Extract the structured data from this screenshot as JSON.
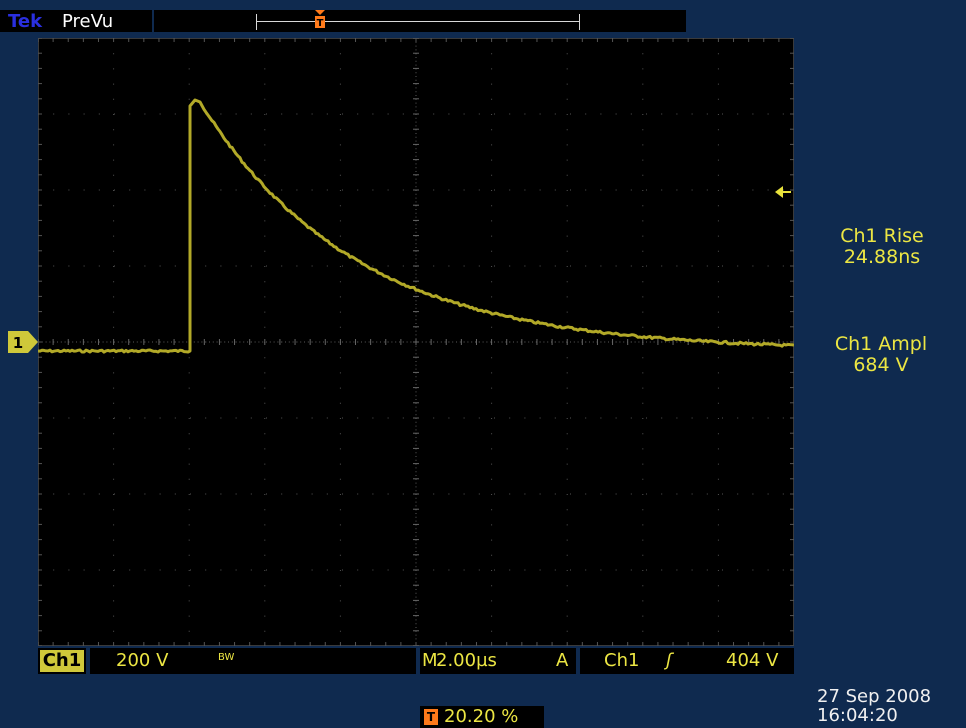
{
  "header": {
    "brand": "Tek",
    "mode": "PreVu"
  },
  "markers": {
    "trigger_label": "T",
    "channel_label": "1"
  },
  "measurements": [
    {
      "name": "Ch1 Rise",
      "value": "24.88ns"
    },
    {
      "name": "Ch1 Ampl",
      "value": "684 V"
    }
  ],
  "status": {
    "channel": "Ch1",
    "volts_per_div": "200 V",
    "bw_limit": "BW",
    "timebase_prefix": "M",
    "timebase": "2.00µs",
    "trigger_mode": "A",
    "trigger_source": "Ch1",
    "trigger_slope": "ʃ",
    "trigger_level": "404 V"
  },
  "trigger_position": {
    "icon": "T",
    "value": "20.20 %"
  },
  "timestamp": {
    "date": "27 Sep  2008",
    "time": "16:04:20"
  },
  "colors": {
    "trace": "#b2a928",
    "trigger_marker": "#ff7a1a",
    "background": "#0f2a4f",
    "readout": "#ece643"
  }
}
